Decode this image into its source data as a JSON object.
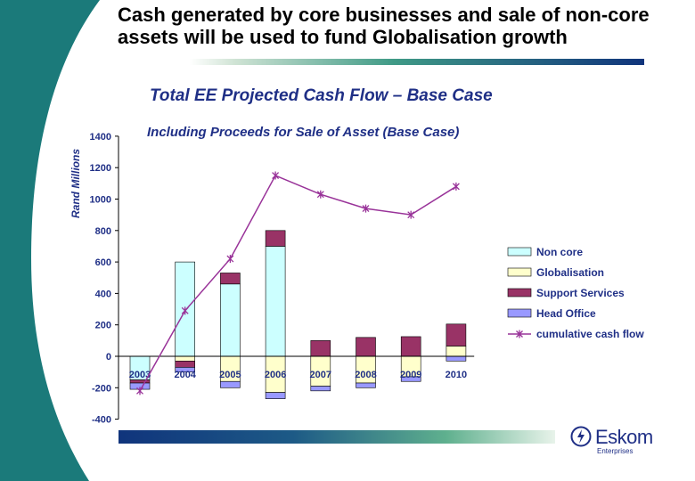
{
  "slide": {
    "title": "Cash generated by core businesses and sale of non-core assets will be used to fund Globalisation growth"
  },
  "brand": {
    "name": "Eskom",
    "subtitle": "Enterprises",
    "color": "#1f2f86"
  },
  "chart_data": {
    "type": "bar",
    "stacked": true,
    "title": "Total EE Projected Cash Flow – Base Case",
    "subtitle": "Including Proceeds for Sale of Asset (Base Case)",
    "ylabel": "Rand Millions",
    "xlabel": "",
    "ylim": [
      -400,
      1400
    ],
    "yticks": [
      -400,
      -200,
      0,
      200,
      400,
      600,
      800,
      1000,
      1200,
      1400
    ],
    "categories": [
      "2003",
      "2004",
      "2005",
      "2006",
      "2007",
      "2008",
      "2009",
      "2010"
    ],
    "legend_position": "right",
    "series": [
      {
        "name": "Non core",
        "kind": "bar",
        "color": "#ccffff",
        "positive": [
          0,
          600,
          460,
          700,
          0,
          0,
          0,
          0
        ],
        "negative": [
          -150,
          0,
          0,
          0,
          0,
          0,
          0,
          0
        ]
      },
      {
        "name": "Globalisation",
        "kind": "bar",
        "color": "#ffffcc",
        "positive": [
          0,
          0,
          0,
          0,
          0,
          0,
          0,
          65
        ],
        "negative": [
          0,
          -30,
          -160,
          -230,
          -190,
          -170,
          -130,
          0
        ]
      },
      {
        "name": "Support Services",
        "kind": "bar",
        "color": "#993366",
        "positive": [
          0,
          0,
          70,
          100,
          100,
          120,
          125,
          140
        ],
        "negative": [
          -20,
          -40,
          0,
          0,
          0,
          0,
          0,
          0
        ]
      },
      {
        "name": "Head Office",
        "kind": "bar",
        "color": "#9999ff",
        "positive": [
          0,
          0,
          0,
          0,
          0,
          0,
          0,
          0
        ],
        "negative": [
          -40,
          -30,
          -40,
          -40,
          -30,
          -30,
          -30,
          -30
        ]
      },
      {
        "name": "cumulative cash flow",
        "kind": "line",
        "color": "#993399",
        "values": [
          -220,
          290,
          620,
          1150,
          1030,
          940,
          900,
          1080
        ]
      }
    ]
  }
}
